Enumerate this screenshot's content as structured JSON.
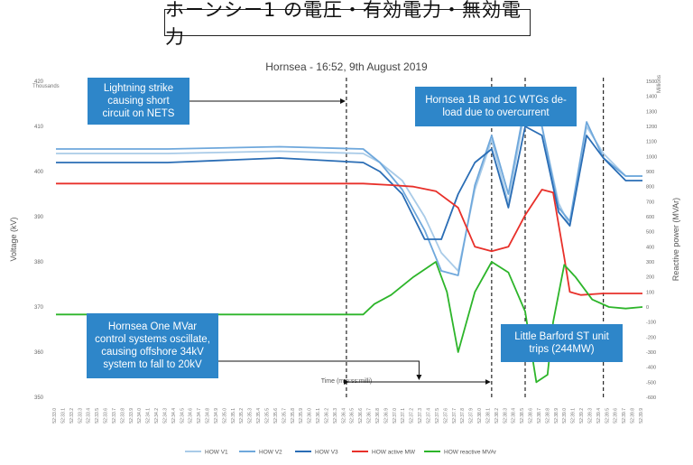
{
  "page_title": "ホーンシー1 の電圧・有効電力・無効電力",
  "chart_data": {
    "type": "line",
    "title": "Hornsea - 16:52, 9th August 2019",
    "xlabel": "Time (mm:ss:milli)",
    "ylabel_left": "Voltage (kV)",
    "ylabel_right": "Reactive power (MVAr)",
    "left_unit_label": "Thousands",
    "right_unit_label": "Millions",
    "y_left_lim": [
      350,
      420
    ],
    "y_left_ticks": [
      "350",
      "360",
      "370",
      "380",
      "390",
      "400",
      "410",
      "420"
    ],
    "y_right_lim": [
      -600,
      1500
    ],
    "y_right_ticks": [
      "1500",
      "1400",
      "1300",
      "1200",
      "1100",
      "1000",
      "900",
      "800",
      "700",
      "600",
      "500",
      "400",
      "300",
      "200",
      "100",
      "0",
      "-100",
      "-200",
      "-300",
      "-400",
      "-500",
      "-600"
    ],
    "x_start": 0,
    "x_end": 105,
    "x_tick_labels": [
      "52:33.0",
      "52:33.1",
      "52:33.2",
      "52:33.3",
      "52:33.4",
      "52:33.5",
      "52:33.6",
      "52:33.7",
      "52:33.8",
      "52:33.9",
      "52:34.0",
      "52:34.1",
      "52:34.2",
      "52:34.3",
      "52:34.4",
      "52:34.5",
      "52:34.6",
      "52:34.7",
      "52:34.8",
      "52:34.9",
      "52:35.0",
      "52:35.1",
      "52:35.2",
      "52:35.3",
      "52:35.4",
      "52:35.5",
      "52:35.6",
      "52:35.7",
      "52:35.8",
      "52:35.9",
      "52:36.0",
      "52:36.1",
      "52:36.2",
      "52:36.3",
      "52:36.4",
      "52:36.5",
      "52:36.6",
      "52:36.7",
      "52:36.8",
      "52:36.9",
      "52:37.0",
      "52:37.1",
      "52:37.2",
      "52:37.3",
      "52:37.4",
      "52:37.5",
      "52:37.6",
      "52:37.7",
      "52:37.8",
      "52:37.9",
      "52:38.0",
      "52:38.1",
      "52:38.2",
      "52:38.3",
      "52:38.4",
      "52:38.5",
      "52:38.6",
      "52:38.7",
      "52:38.8",
      "52:38.9",
      "52:39.0",
      "52:39.1",
      "52:39.2",
      "52:39.3",
      "52:39.4",
      "52:39.5",
      "52:39.6",
      "52:39.7",
      "52:39.8",
      "52:39.9"
    ],
    "series": [
      {
        "name": "HOW V1",
        "axis": "left",
        "color": "#a9cbe8",
        "points": [
          [
            0,
            404
          ],
          [
            20,
            404
          ],
          [
            40,
            404.5
          ],
          [
            55,
            404
          ],
          [
            58,
            402
          ],
          [
            62,
            398
          ],
          [
            66,
            390
          ],
          [
            69,
            382
          ],
          [
            72,
            378
          ],
          [
            75,
            396
          ],
          [
            78,
            407
          ],
          [
            81,
            393
          ],
          [
            84,
            414
          ],
          [
            87,
            410
          ],
          [
            90,
            393
          ],
          [
            92,
            388
          ],
          [
            95,
            410
          ],
          [
            98,
            404
          ],
          [
            102,
            399
          ],
          [
            105,
            399
          ]
        ]
      },
      {
        "name": "HOW V2",
        "axis": "left",
        "color": "#6fa8dc",
        "points": [
          [
            0,
            405
          ],
          [
            20,
            405
          ],
          [
            40,
            405.5
          ],
          [
            55,
            405
          ],
          [
            58,
            402
          ],
          [
            62,
            396
          ],
          [
            66,
            387
          ],
          [
            69,
            378
          ],
          [
            72,
            377
          ],
          [
            75,
            397
          ],
          [
            78,
            408
          ],
          [
            81,
            395
          ],
          [
            84,
            415
          ],
          [
            87,
            410
          ],
          [
            90,
            392
          ],
          [
            92,
            389
          ],
          [
            95,
            411
          ],
          [
            98,
            403
          ],
          [
            102,
            399
          ],
          [
            105,
            399
          ]
        ]
      },
      {
        "name": "HOW V3",
        "axis": "left",
        "color": "#2a6db5",
        "points": [
          [
            0,
            402
          ],
          [
            20,
            402
          ],
          [
            40,
            403
          ],
          [
            55,
            402
          ],
          [
            58,
            400
          ],
          [
            62,
            395
          ],
          [
            66,
            385
          ],
          [
            69,
            385
          ],
          [
            72,
            395
          ],
          [
            75,
            402
          ],
          [
            78,
            405
          ],
          [
            81,
            392
          ],
          [
            84,
            410
          ],
          [
            87,
            408
          ],
          [
            90,
            391
          ],
          [
            92,
            388
          ],
          [
            95,
            408
          ],
          [
            98,
            403
          ],
          [
            102,
            398
          ],
          [
            105,
            398
          ]
        ]
      },
      {
        "name": "HOW active MW",
        "axis": "right",
        "color": "#e8302a",
        "points": [
          [
            0,
            820
          ],
          [
            20,
            820
          ],
          [
            40,
            820
          ],
          [
            55,
            820
          ],
          [
            60,
            810
          ],
          [
            64,
            800
          ],
          [
            68,
            770
          ],
          [
            72,
            660
          ],
          [
            75,
            400
          ],
          [
            78,
            370
          ],
          [
            81,
            400
          ],
          [
            84,
            610
          ],
          [
            87,
            780
          ],
          [
            89,
            760
          ],
          [
            91,
            330
          ],
          [
            92,
            100
          ],
          [
            94,
            80
          ],
          [
            98,
            90
          ],
          [
            102,
            90
          ],
          [
            105,
            90
          ]
        ]
      },
      {
        "name": "HOW reactive MVAr",
        "axis": "right",
        "color": "#2db52a",
        "points": [
          [
            0,
            -50
          ],
          [
            20,
            -50
          ],
          [
            40,
            -50
          ],
          [
            55,
            -50
          ],
          [
            57,
            20
          ],
          [
            60,
            80
          ],
          [
            64,
            200
          ],
          [
            68,
            300
          ],
          [
            70,
            100
          ],
          [
            72,
            -300
          ],
          [
            75,
            100
          ],
          [
            78,
            300
          ],
          [
            81,
            230
          ],
          [
            84,
            -30
          ],
          [
            86,
            -500
          ],
          [
            88,
            -450
          ],
          [
            89,
            -100
          ],
          [
            91,
            280
          ],
          [
            93,
            200
          ],
          [
            96,
            50
          ],
          [
            99,
            0
          ],
          [
            102,
            -10
          ],
          [
            105,
            0
          ]
        ]
      }
    ],
    "annotations": [
      {
        "text": "Lightning strike causing short circuit on NETS"
      },
      {
        "text": "Hornsea 1B and 1C WTGs de-load due to overcurrent"
      },
      {
        "text": "Hornsea One MVar control systems oscillate, causing offshore 34kV system to fall to 20kV"
      },
      {
        "text": "Little Barford ST unit trips (244MW)"
      }
    ],
    "event_markers_x": [
      52,
      78,
      84,
      98
    ],
    "legend_position": "bottom",
    "grid": false
  }
}
